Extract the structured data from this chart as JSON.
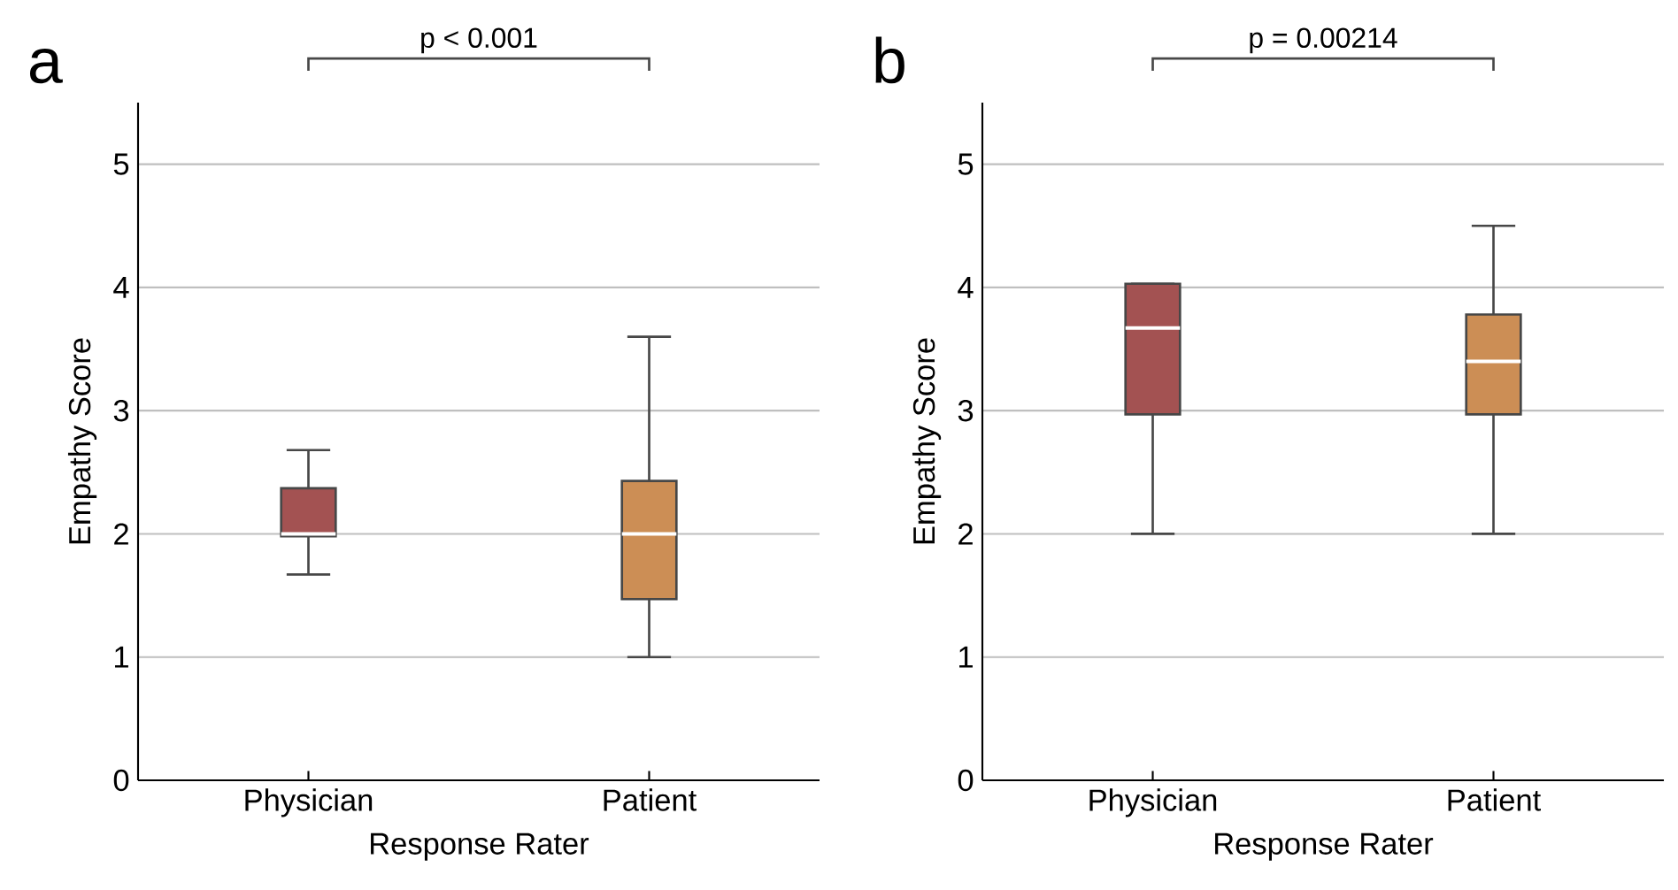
{
  "chart_data": [
    {
      "type": "box",
      "title": "a",
      "xlabel": "Response Rater",
      "ylabel": "Empathy Score",
      "categories": [
        "Physician",
        "Patient"
      ],
      "boxes": [
        {
          "low": 1.67,
          "q1": 1.98,
          "median": 2.0,
          "q3": 2.37,
          "high": 2.68
        },
        {
          "low": 1.0,
          "q1": 1.47,
          "median": 2.0,
          "q3": 2.43,
          "high": 3.6
        }
      ],
      "colors": [
        "#a35252",
        "#cc8e55"
      ],
      "ylim": [
        0,
        5.5
      ],
      "yticks": [
        0,
        1,
        2,
        3,
        4,
        5
      ],
      "grid": "y",
      "annotations": [
        "p < 0.001"
      ]
    },
    {
      "type": "box",
      "title": "b",
      "xlabel": "Response Rater",
      "ylabel": "Empathy Score",
      "categories": [
        "Physician",
        "Patient"
      ],
      "boxes": [
        {
          "low": 2.0,
          "q1": 2.97,
          "median": 3.67,
          "q3": 4.03,
          "high": 4.03
        },
        {
          "low": 2.0,
          "q1": 2.97,
          "median": 3.4,
          "q3": 3.78,
          "high": 4.5
        }
      ],
      "colors": [
        "#a35252",
        "#cc8e55"
      ],
      "ylim": [
        0,
        5.5
      ],
      "yticks": [
        0,
        1,
        2,
        3,
        4,
        5
      ],
      "grid": "y",
      "annotations": [
        "p = 0.00214"
      ]
    }
  ]
}
